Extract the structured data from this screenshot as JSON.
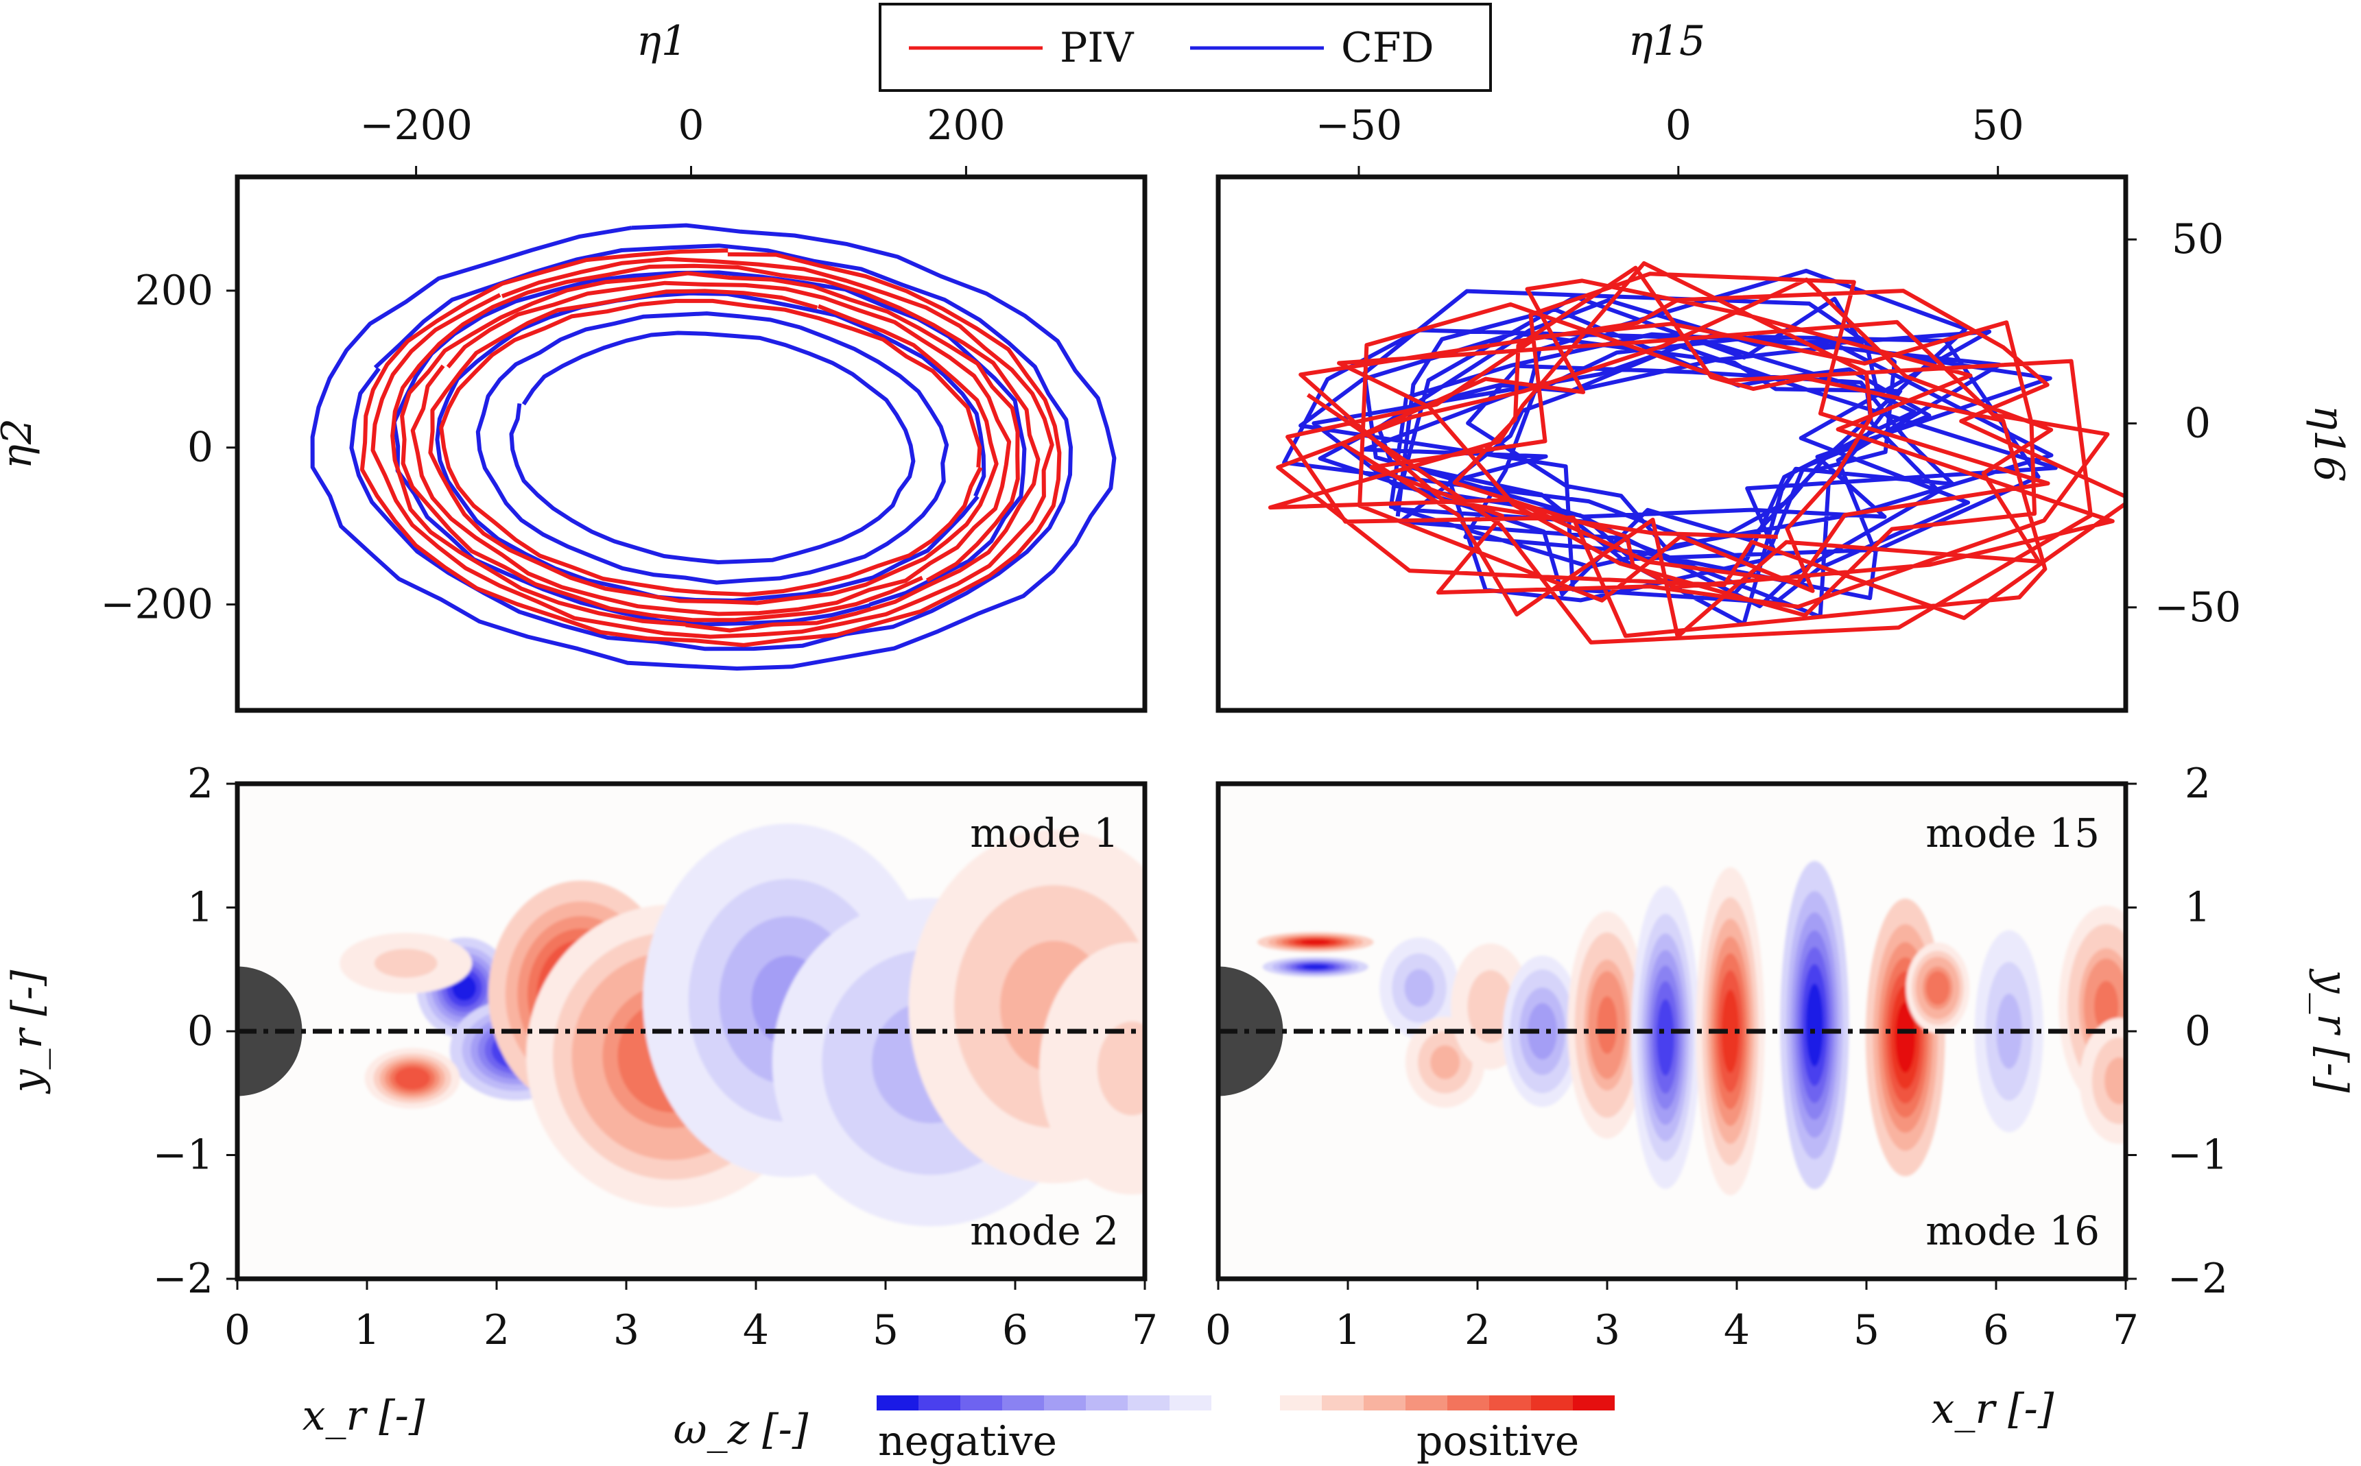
{
  "legend": {
    "entries": [
      {
        "label": "PIV",
        "color": "#ee1c1c"
      },
      {
        "label": "CFD",
        "color": "#1f1fe6"
      }
    ]
  },
  "colorbar": {
    "label": "ω_z [-]",
    "negative_label": "negative",
    "positive_label": "positive",
    "negative_colors": [
      "#1a1ae6",
      "#4a40ee",
      "#6e63f0",
      "#8a82f2",
      "#a49ef5",
      "#bdb9f8",
      "#d6d4fa",
      "#ebeafc"
    ],
    "positive_colors": [
      "#fdebe6",
      "#fbd0c4",
      "#f9b3a0",
      "#f6947d",
      "#f3745c",
      "#f0553f",
      "#ec3524",
      "#e50f0f"
    ]
  },
  "chart_data": [
    {
      "type": "line",
      "panel": "top-left",
      "xlabel": "η1",
      "ylabel": "η2",
      "xlim": [
        -330,
        330
      ],
      "ylim": [
        -335,
        345
      ],
      "xticks": [
        -200,
        0,
        200
      ],
      "yticks": [
        -200,
        0,
        200
      ],
      "xtick_labels": [
        "−200",
        "0",
        "200"
      ],
      "ytick_labels": [
        "−200",
        "0",
        "200"
      ],
      "series": [
        {
          "name": "PIV",
          "color": "#ee1c1c",
          "orbits": [
            {
              "cx": 15,
              "cy": 0,
              "rx": 255,
              "ry": 250
            },
            {
              "cx": 15,
              "cy": 0,
              "rx": 245,
              "ry": 240
            },
            {
              "cx": 15,
              "cy": 0,
              "rx": 235,
              "ry": 230
            },
            {
              "cx": 15,
              "cy": 0,
              "rx": 225,
              "ry": 220
            },
            {
              "cx": 15,
              "cy": 0,
              "rx": 215,
              "ry": 210
            },
            {
              "cx": 15,
              "cy": 0,
              "rx": 205,
              "ry": 198
            },
            {
              "cx": 15,
              "cy": 0,
              "rx": 195,
              "ry": 186
            }
          ]
        },
        {
          "name": "CFD",
          "color": "#1f1fe6",
          "orbits": [
            {
              "cx": 15,
              "cy": 0,
              "rx": 290,
              "ry": 280
            },
            {
              "cx": 15,
              "cy": 0,
              "rx": 260,
              "ry": 255
            },
            {
              "cx": 15,
              "cy": 0,
              "rx": 230,
              "ry": 225
            },
            {
              "cx": 15,
              "cy": 0,
              "rx": 200,
              "ry": 195
            },
            {
              "cx": 15,
              "cy": 0,
              "rx": 170,
              "ry": 170
            },
            {
              "cx": 15,
              "cy": 0,
              "rx": 145,
              "ry": 145
            }
          ]
        }
      ]
    },
    {
      "type": "line",
      "panel": "top-right",
      "xlabel": "η15",
      "ylabel": "η16",
      "xlim": [
        -72,
        70
      ],
      "ylim": [
        -78,
        67
      ],
      "xticks": [
        -50,
        0,
        50
      ],
      "yticks": [
        -50,
        0,
        50
      ],
      "xtick_labels": [
        "−50",
        "0",
        "50"
      ],
      "ytick_labels": [
        "−50",
        "0",
        "50"
      ],
      "series": [
        {
          "name": "PIV",
          "color": "#ee1c1c"
        },
        {
          "name": "CFD",
          "color": "#1f1fe6"
        }
      ]
    },
    {
      "type": "heatmap",
      "panel": "bottom-left",
      "annotations": [
        "mode 1",
        "mode 2"
      ],
      "xlabel": "x_r [-]",
      "ylabel": "y_r [-]",
      "xlim": [
        0,
        7
      ],
      "ylim": [
        -2,
        2
      ],
      "xticks": [
        0,
        1,
        2,
        3,
        4,
        5,
        6,
        7
      ],
      "yticks": [
        -2,
        -1,
        0,
        1,
        2
      ],
      "xtick_labels": [
        "0",
        "1",
        "2",
        "3",
        "4",
        "5",
        "6",
        "7"
      ],
      "ytick_labels": [
        "−2",
        "−1",
        "0",
        "1",
        "2"
      ],
      "blobs": [
        {
          "x": 1.75,
          "y": 0.35,
          "sx": 0.18,
          "sy": 0.2,
          "v": -1.0
        },
        {
          "x": 2.15,
          "y": -0.15,
          "sx": 0.25,
          "sy": 0.2,
          "v": -1.0
        },
        {
          "x": 1.35,
          "y": -0.38,
          "sx": 0.18,
          "sy": 0.12,
          "v": 0.75
        },
        {
          "x": 1.3,
          "y": 0.55,
          "sx": 0.25,
          "sy": 0.12,
          "v": 0.2
        },
        {
          "x": 2.65,
          "y": 0.3,
          "sx": 0.35,
          "sy": 0.45,
          "v": 1.0
        },
        {
          "x": 3.35,
          "y": -0.2,
          "sx": 0.55,
          "sy": 0.6,
          "v": 0.6
        },
        {
          "x": 4.25,
          "y": 0.25,
          "sx": 0.55,
          "sy": 0.7,
          "v": -0.4
        },
        {
          "x": 5.35,
          "y": -0.25,
          "sx": 0.6,
          "sy": 0.65,
          "v": -0.35
        },
        {
          "x": 6.3,
          "y": 0.2,
          "sx": 0.55,
          "sy": 0.7,
          "v": 0.3
        },
        {
          "x": 6.9,
          "y": -0.3,
          "sx": 0.35,
          "sy": 0.5,
          "v": 0.15
        }
      ]
    },
    {
      "type": "heatmap",
      "panel": "bottom-right",
      "annotations": [
        "mode 15",
        "mode 16"
      ],
      "xlabel": "x_r [-]",
      "ylabel": "y_r [-]",
      "xlim": [
        0,
        7
      ],
      "ylim": [
        -2,
        2
      ],
      "xticks": [
        0,
        1,
        2,
        3,
        4,
        5,
        6,
        7
      ],
      "yticks": [
        -2,
        -1,
        0,
        1,
        2
      ],
      "xtick_labels": [
        "0",
        "1",
        "2",
        "3",
        "4",
        "5",
        "6",
        "7"
      ],
      "ytick_labels": [
        "−2",
        "−1",
        "0",
        "1",
        "2"
      ],
      "blobs": [
        {
          "x": 0.75,
          "y": 0.72,
          "sx": 0.22,
          "sy": 0.04,
          "v": 1.0
        },
        {
          "x": 0.75,
          "y": 0.52,
          "sx": 0.2,
          "sy": 0.04,
          "v": -1.0
        },
        {
          "x": 1.55,
          "y": 0.35,
          "sx": 0.15,
          "sy": 0.2,
          "v": -0.3
        },
        {
          "x": 1.75,
          "y": -0.25,
          "sx": 0.15,
          "sy": 0.18,
          "v": 0.3
        },
        {
          "x": 2.1,
          "y": 0.2,
          "sx": 0.15,
          "sy": 0.25,
          "v": 0.25
        },
        {
          "x": 2.5,
          "y": 0.0,
          "sx": 0.15,
          "sy": 0.3,
          "v": -0.45
        },
        {
          "x": 3.0,
          "y": 0.05,
          "sx": 0.15,
          "sy": 0.45,
          "v": 0.55
        },
        {
          "x": 3.45,
          "y": -0.05,
          "sx": 0.13,
          "sy": 0.6,
          "v": -0.8
        },
        {
          "x": 3.95,
          "y": 0.0,
          "sx": 0.13,
          "sy": 0.65,
          "v": 0.85
        },
        {
          "x": 4.6,
          "y": 0.05,
          "sx": 0.13,
          "sy": 0.65,
          "v": -0.9
        },
        {
          "x": 5.3,
          "y": -0.05,
          "sx": 0.15,
          "sy": 0.55,
          "v": 0.95
        },
        {
          "x": 5.55,
          "y": 0.35,
          "sx": 0.12,
          "sy": 0.18,
          "v": 0.6
        },
        {
          "x": 6.1,
          "y": 0.0,
          "sx": 0.13,
          "sy": 0.4,
          "v": -0.35
        },
        {
          "x": 6.85,
          "y": 0.2,
          "sx": 0.18,
          "sy": 0.4,
          "v": 0.55
        },
        {
          "x": 6.95,
          "y": -0.4,
          "sx": 0.15,
          "sy": 0.25,
          "v": 0.3
        }
      ]
    }
  ]
}
